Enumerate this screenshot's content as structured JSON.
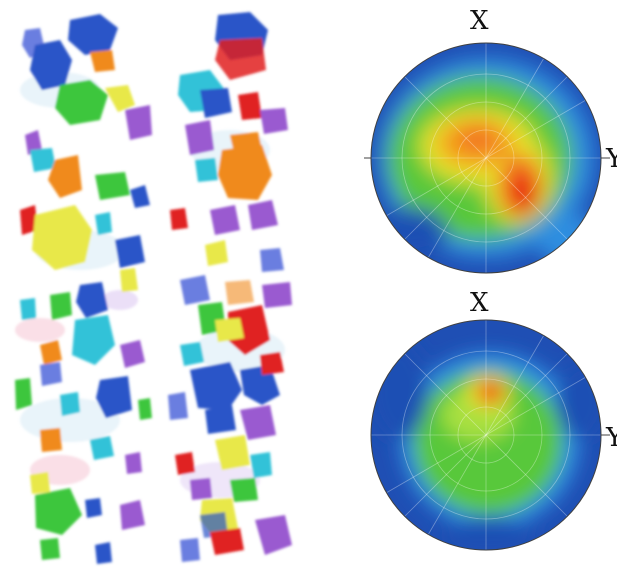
{
  "figure": {
    "left_panel": {
      "icon": "grain-reconstruction-columns",
      "palette": [
        "#2a55c8",
        "#33c2d8",
        "#f08a1e",
        "#e8e84a",
        "#3ec63e",
        "#9a5ad0",
        "#e02020",
        "#6a7ee0",
        "#c0e0f0"
      ]
    },
    "pole_figures": [
      {
        "name": "top",
        "axis_x_label": "X",
        "axis_y_label": "Y",
        "icon": "pole-figure-density-map",
        "colors": {
          "low": "#1f4fb4",
          "mid": "#58c83a",
          "high": "#e81e10"
        }
      },
      {
        "name": "bottom",
        "axis_x_label": "X",
        "axis_y_label": "Y",
        "icon": "pole-figure-density-map",
        "colors": {
          "low": "#1f4fb4",
          "mid": "#58c83a",
          "high": "#e81e10"
        }
      }
    ]
  }
}
